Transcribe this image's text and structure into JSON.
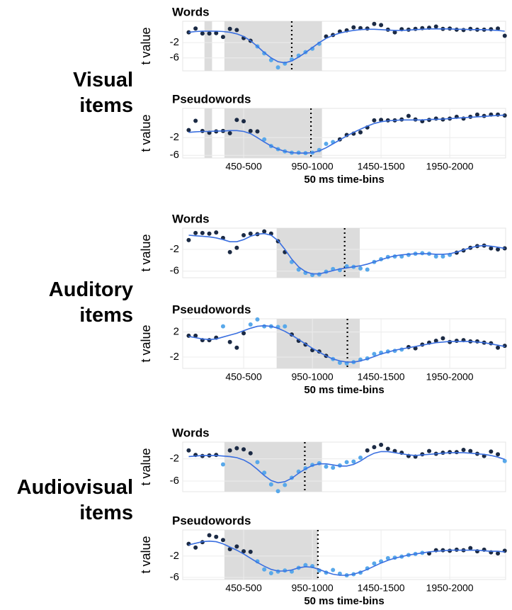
{
  "groups": [
    "Visual items",
    "Auditory items",
    "Audiovisual items"
  ],
  "chart_data": [
    {
      "type": "scatter",
      "title": "Words",
      "y_label": "t value",
      "ylim": [
        -9.4,
        3.6
      ],
      "yticks": [
        -2,
        -6
      ],
      "values": [
        0.7,
        1.7,
        0.4,
        0.4,
        0.5,
        -0.5,
        1.6,
        1.3,
        -0.8,
        -1.5,
        -3,
        -4.8,
        -6.6,
        -8.5,
        -7.5,
        -6.4,
        -5.4,
        -4.5,
        -3.6,
        -2.3,
        -0.4,
        0,
        0.9,
        1.2,
        2,
        1.8,
        1.7,
        2.9,
        2.6,
        1.4,
        0.7,
        1.5,
        1.4,
        1.6,
        1.8,
        1.9,
        2.2,
        1.6,
        1.7,
        1.4,
        1.3,
        1.6,
        1.4,
        1.4,
        1.5,
        1.7,
        -0.2
      ],
      "fit": [
        0.7,
        0.9,
        1.0,
        1.0,
        1.0,
        0.9,
        0.7,
        0.3,
        -0.4,
        -1.5,
        -3,
        -4.6,
        -6,
        -7,
        -7.3,
        -6.8,
        -5.8,
        -4.6,
        -3.3,
        -2.0,
        -0.9,
        -0.1,
        0.5,
        0.9,
        1.2,
        1.4,
        1.5,
        1.5,
        1.4,
        1.3,
        1.2,
        1.2,
        1.3,
        1.4,
        1.5,
        1.6,
        1.6,
        1.6,
        1.6,
        1.5,
        1.5,
        1.4,
        1.4,
        1.4,
        1.3,
        1.2,
        1.0
      ],
      "sig": "00000000001111111111000000000000000000000000000",
      "shaded": [
        [
          2.3,
          3.4
        ],
        [
          5.2,
          19.4
        ]
      ],
      "vline": 15.0,
      "color": "#1b2a44",
      "sig_color": "#58a8ea",
      "fit_color": "#3a6fe0"
    },
    {
      "type": "scatter",
      "title": "Pseudowords",
      "y_label": "t value",
      "ylim": [
        -6.6,
        4.6
      ],
      "yticks": [
        -2,
        -6
      ],
      "values": [
        -0.3,
        1.8,
        -0.5,
        -0.9,
        -0.6,
        -0.5,
        -1.0,
        2.0,
        1.7,
        -0.5,
        -0.6,
        -2.4,
        -3.9,
        -4.6,
        -5.1,
        -5.4,
        -5.4,
        -5.5,
        -5.4,
        -4.8,
        -3.4,
        -3.0,
        -2.4,
        -1.4,
        -1.1,
        -0.8,
        0.3,
        1.9,
        2.0,
        1.9,
        1.9,
        2.1,
        2.9,
        2.1,
        1.7,
        2.0,
        2.3,
        2.1,
        2.3,
        2.7,
        2.3,
        2.7,
        3.2,
        2.9,
        3.2,
        3.2,
        3.0
      ],
      "fit": [
        -0.8,
        -0.7,
        -0.6,
        -0.6,
        -0.5,
        -0.5,
        -0.4,
        -0.4,
        -0.6,
        -1.1,
        -2.0,
        -3.0,
        -3.9,
        -4.6,
        -5.1,
        -5.4,
        -5.5,
        -5.5,
        -5.4,
        -5.0,
        -4.3,
        -3.4,
        -2.5,
        -1.6,
        -0.8,
        -0.1,
        0.6,
        1.2,
        1.6,
        1.8,
        1.9,
        2.0,
        2.0,
        2.0,
        2.0,
        2.1,
        2.1,
        2.2,
        2.3,
        2.4,
        2.5,
        2.6,
        2.7,
        2.8,
        2.9,
        3.0,
        3.1
      ],
      "sig": "00000000000111111111110000000000000000000000000",
      "shaded": [
        [
          2.3,
          3.4
        ],
        [
          5.2,
          19.4
        ]
      ],
      "vline": 17.8,
      "categories": [
        null,
        null,
        null,
        null,
        null,
        null,
        null,
        null,
        "450-500",
        null,
        null,
        null,
        null,
        null,
        null,
        null,
        null,
        null,
        "950-1000",
        null,
        null,
        null,
        null,
        null,
        null,
        null,
        null,
        null,
        "1450-1500",
        null,
        null,
        null,
        null,
        null,
        null,
        null,
        null,
        null,
        "1950-2000",
        null,
        null,
        null,
        null,
        null,
        null,
        null,
        null
      ],
      "x_label": "50 ms time-bins",
      "color": "#1b2a44",
      "sig_color": "#58a8ea",
      "fit_color": "#3a6fe0"
    },
    {
      "type": "scatter",
      "title": "Words",
      "y_label": "t value",
      "ylim": [
        -7.2,
        1.9
      ],
      "yticks": [
        -2,
        -6
      ],
      "values": [
        -0.3,
        1.0,
        1.0,
        0.9,
        1.1,
        0.1,
        -2.5,
        -1.7,
        0.6,
        0.9,
        0.8,
        1.3,
        0.9,
        -0.5,
        -2.5,
        -4.3,
        -5.7,
        -6.3,
        -6.7,
        -6.6,
        -6.1,
        -5.6,
        -5.8,
        -5.1,
        -5.2,
        -5.5,
        -5.7,
        -4.3,
        -3.8,
        -3.4,
        -3.3,
        -3.3,
        -3.0,
        -2.8,
        -2.7,
        -2.8,
        -3.3,
        -3.3,
        -3.0,
        -2.6,
        -2.2,
        -1.7,
        -1.4,
        -1.3,
        -1.8,
        -2.0,
        -1.8
      ],
      "fit": [
        0.6,
        0.5,
        0.4,
        0.3,
        0.1,
        -0.2,
        -0.6,
        -0.6,
        -0.2,
        0.4,
        0.8,
        0.9,
        0.6,
        -0.4,
        -2.0,
        -3.8,
        -5.2,
        -6.1,
        -6.5,
        -6.5,
        -6.2,
        -5.9,
        -5.6,
        -5.4,
        -5.2,
        -5.0,
        -4.7,
        -4.3,
        -3.9,
        -3.5,
        -3.2,
        -3.0,
        -2.9,
        -2.8,
        -2.8,
        -2.8,
        -2.9,
        -2.9,
        -2.8,
        -2.5,
        -2.1,
        -1.7,
        -1.4,
        -1.3,
        -1.4,
        -1.6,
        -1.8
      ],
      "sig": "00000000000000011111111111111111111111100000000",
      "shaded": [
        [
          12.8,
          24.9
        ]
      ],
      "vline": 22.7,
      "color": "#1b2a44",
      "sig_color": "#58a8ea",
      "fit_color": "#3a6fe0"
    },
    {
      "type": "scatter",
      "title": "Pseudowords",
      "y_label": "t value",
      "ylim": [
        -3.8,
        4.1
      ],
      "yticks": [
        2,
        -2
      ],
      "values": [
        1.4,
        1.4,
        0.7,
        0.7,
        1.1,
        2.9,
        0.4,
        -0.5,
        1.8,
        3.2,
        4.0,
        2.9,
        2.9,
        2.8,
        2.9,
        1.6,
        0.6,
        0,
        -0.9,
        -1.1,
        -1.8,
        -2.3,
        -2.9,
        -3.0,
        -2.8,
        -2.4,
        -2.2,
        -1.5,
        -1.3,
        -1.1,
        -1.0,
        -0.8,
        -0.4,
        -0.6,
        0,
        0.3,
        0.6,
        1.0,
        0.4,
        0.6,
        0.7,
        0.5,
        0.5,
        0.3,
        0.2,
        -0.5,
        -0.2
      ],
      "fit": [
        1.3,
        1.1,
        0.9,
        0.8,
        0.9,
        1.2,
        1.5,
        1.8,
        2.2,
        2.6,
        2.9,
        3.0,
        2.9,
        2.6,
        2.1,
        1.5,
        0.8,
        0.1,
        -0.6,
        -1.2,
        -1.8,
        -2.3,
        -2.6,
        -2.8,
        -2.8,
        -2.6,
        -2.3,
        -1.9,
        -1.5,
        -1.2,
        -0.9,
        -0.7,
        -0.5,
        -0.3,
        -0.1,
        0.1,
        0.3,
        0.4,
        0.5,
        0.5,
        0.5,
        0.5,
        0.4,
        0.3,
        0.1,
        -0.1,
        -0.3
      ],
      "sig": "00000100011111100000011111111111000000000000000",
      "shaded": [
        [
          12.8,
          24.9
        ]
      ],
      "vline": 23.1,
      "categories": [
        null,
        null,
        null,
        null,
        null,
        null,
        null,
        null,
        "450-500",
        null,
        null,
        null,
        null,
        null,
        null,
        null,
        null,
        null,
        "950-1000",
        null,
        null,
        null,
        null,
        null,
        null,
        null,
        null,
        null,
        "1450-1500",
        null,
        null,
        null,
        null,
        null,
        null,
        null,
        null,
        null,
        "1950-2000",
        null,
        null,
        null,
        null,
        null,
        null,
        null,
        null
      ],
      "x_label": "50 ms time-bins",
      "color": "#1b2a44",
      "sig_color": "#58a8ea",
      "fit_color": "#3a6fe0"
    },
    {
      "type": "scatter",
      "title": "Words",
      "y_label": "t value",
      "ylim": [
        -7.9,
        1.0
      ],
      "yticks": [
        -2,
        -6
      ],
      "values": [
        -0.5,
        -1.3,
        -1.5,
        -1.4,
        -1.3,
        -3.0,
        -0.5,
        -0.1,
        -0.3,
        -1.0,
        -2.6,
        -4.5,
        -6.6,
        -7.8,
        -6.7,
        -5.4,
        -4.3,
        -3.7,
        -3.1,
        -2.8,
        -3.4,
        -3.6,
        -3.2,
        -2.6,
        -2.5,
        -1.8,
        -0.5,
        0.1,
        0.5,
        -0.2,
        -0.6,
        -0.9,
        -1.5,
        -1.6,
        -1.2,
        -0.6,
        -1.1,
        -0.9,
        -0.8,
        -0.8,
        -0.4,
        -0.6,
        -1.1,
        -1.5,
        -0.7,
        -1.2,
        -2.4
      ],
      "fit": [
        -1.6,
        -1.5,
        -1.4,
        -1.4,
        -1.4,
        -1.5,
        -1.6,
        -1.8,
        -2.2,
        -2.9,
        -3.9,
        -5.0,
        -5.9,
        -6.3,
        -6.1,
        -5.5,
        -4.6,
        -3.8,
        -3.2,
        -2.9,
        -2.9,
        -3.1,
        -3.3,
        -3.3,
        -3.0,
        -2.4,
        -1.6,
        -1.0,
        -0.7,
        -0.7,
        -0.9,
        -1.1,
        -1.3,
        -1.4,
        -1.3,
        -1.2,
        -1.1,
        -1.0,
        -0.9,
        -0.9,
        -0.9,
        -1.0,
        -1.1,
        -1.2,
        -1.4,
        -1.7,
        -2.1
      ],
      "sig": "00000100001111111111111111000000000000000000001",
      "shaded": [
        [
          5.2,
          19.4
        ]
      ],
      "vline": 16.9,
      "color": "#1b2a44",
      "sig_color": "#58a8ea",
      "fit_color": "#3a6fe0"
    },
    {
      "type": "scatter",
      "title": "Pseudowords",
      "y_label": "t value",
      "ylim": [
        -6.4,
        2.9
      ],
      "yticks": [
        -2,
        -6
      ],
      "values": [
        0.3,
        -0.4,
        0.6,
        1.9,
        1.6,
        1.0,
        -0.7,
        -0.2,
        -1.1,
        -1.2,
        -3.0,
        -4.5,
        -5.2,
        -4.9,
        -4.7,
        -4.9,
        -4.2,
        -3.7,
        -3.9,
        -4.7,
        -5.1,
        -4.6,
        -5.3,
        -5.6,
        -5.4,
        -5.1,
        -4.3,
        -3.4,
        -3.0,
        -2.4,
        -2.3,
        -2.1,
        -1.8,
        -1.6,
        -1.4,
        -1.5,
        -0.9,
        -0.9,
        -1.0,
        -0.8,
        -0.9,
        -0.5,
        -1.1,
        -0.8,
        -1.3,
        -1.5,
        -1.0
      ],
      "fit": [
        0.1,
        0.4,
        0.7,
        0.8,
        0.7,
        0.3,
        -0.3,
        -0.9,
        -1.6,
        -2.4,
        -3.2,
        -3.9,
        -4.5,
        -4.8,
        -4.8,
        -4.6,
        -4.2,
        -4.0,
        -4.1,
        -4.5,
        -5.0,
        -5.4,
        -5.6,
        -5.6,
        -5.4,
        -5.0,
        -4.5,
        -3.9,
        -3.3,
        -2.8,
        -2.4,
        -2.1,
        -1.8,
        -1.6,
        -1.4,
        -1.2,
        -1.1,
        -1.0,
        -0.9,
        -0.9,
        -0.9,
        -0.9,
        -0.9,
        -1.0,
        -1.1,
        -1.1,
        -1.2
      ],
      "sig": "00000000001111111111111111111111111000000000000",
      "shaded": [
        [
          5.2,
          18.8
        ]
      ],
      "vline": 18.8,
      "categories": [
        null,
        null,
        null,
        null,
        null,
        null,
        null,
        null,
        "450-500",
        null,
        null,
        null,
        null,
        null,
        null,
        null,
        null,
        null,
        "950-1000",
        null,
        null,
        null,
        null,
        null,
        null,
        null,
        null,
        null,
        "1450-1500",
        null,
        null,
        null,
        null,
        null,
        null,
        null,
        null,
        null,
        "1950-2000",
        null,
        null,
        null,
        null,
        null,
        null,
        null,
        null
      ],
      "x_label": "50 ms time-bins",
      "color": "#1b2a44",
      "sig_color": "#58a8ea",
      "fit_color": "#3a6fe0"
    }
  ]
}
